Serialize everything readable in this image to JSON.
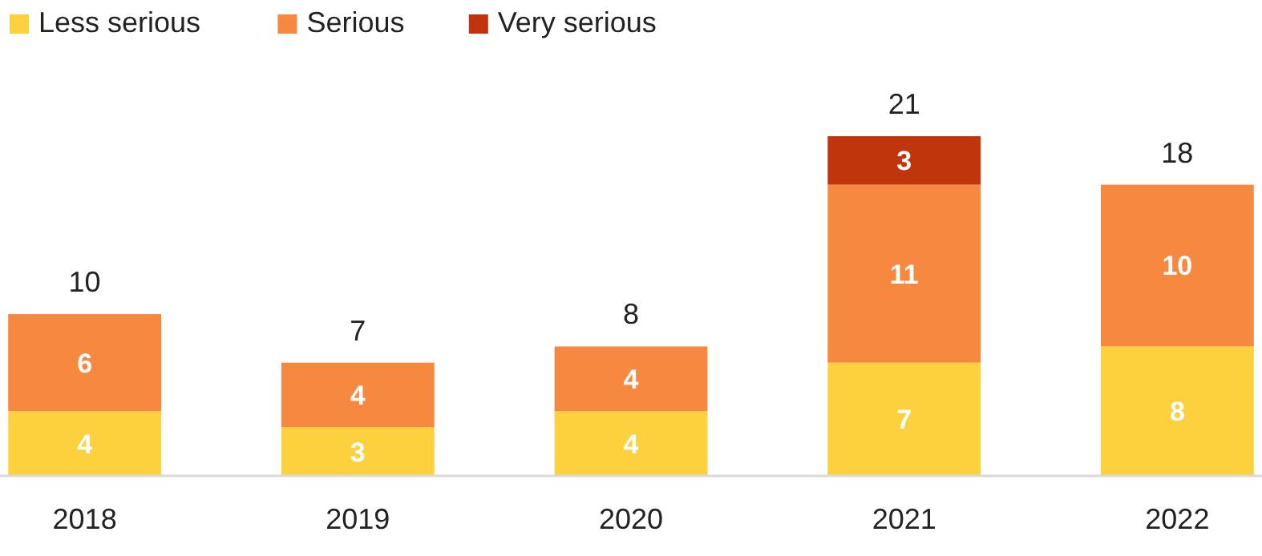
{
  "chart_data": {
    "type": "bar",
    "stacked": true,
    "categories": [
      "2018",
      "2019",
      "2020",
      "2021",
      "2022"
    ],
    "series": [
      {
        "name": "Less serious",
        "color": "#fdd13d",
        "values": [
          4,
          3,
          4,
          7,
          8
        ]
      },
      {
        "name": "Serious",
        "color": "#f6883f",
        "values": [
          6,
          4,
          4,
          11,
          10
        ]
      },
      {
        "name": "Very serious",
        "color": "#c0350b",
        "values": [
          null,
          null,
          null,
          3,
          null
        ]
      }
    ],
    "data_labels": true,
    "totals": [
      "10",
      "7",
      "8",
      "21",
      "18"
    ],
    "legend": "top left"
  }
}
